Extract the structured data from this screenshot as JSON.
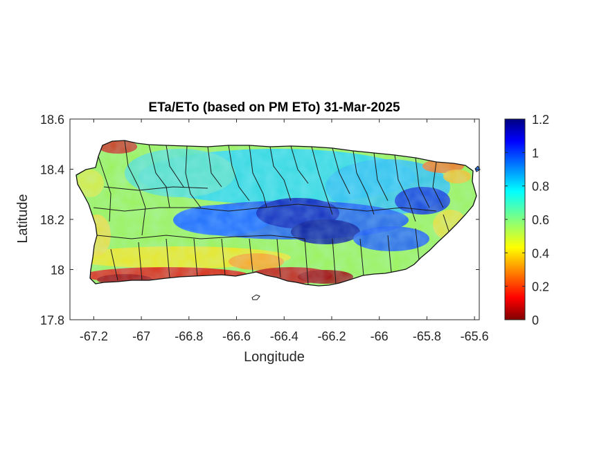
{
  "figure": {
    "title": "ETa/ETo (based on PM ETo) 31-Mar-2025"
  },
  "chart_data": {
    "type": "heatmap",
    "title": "ETa/ETo (based on PM ETo) 31-Mar-2025",
    "xlabel": "Longitude",
    "ylabel": "Latitude",
    "xlim": [
      -67.3,
      -65.58
    ],
    "ylim": [
      17.8,
      18.6
    ],
    "xticks": [
      -67.2,
      -67,
      -66.8,
      -66.6,
      -66.4,
      -66.2,
      -66,
      -65.8,
      -65.6
    ],
    "xtick_labels": [
      "-67.2",
      "-67",
      "-66.8",
      "-66.6",
      "-66.4",
      "-66.2",
      "-66",
      "-65.8",
      "-65.6"
    ],
    "yticks": [
      17.8,
      18,
      18.2,
      18.4,
      18.6
    ],
    "ytick_labels": [
      "17.8",
      "18",
      "18.2",
      "18.4",
      "18.6"
    ],
    "colorbar": {
      "colormap": "jet",
      "range": [
        0,
        1.2
      ],
      "ticks": [
        0,
        0.2,
        0.4,
        0.6,
        0.8,
        1,
        1.2
      ],
      "tick_labels": [
        "0",
        "0.2",
        "0.4",
        "0.6",
        "0.8",
        "1",
        "1.2"
      ]
    },
    "grid": false,
    "box": true
  }
}
